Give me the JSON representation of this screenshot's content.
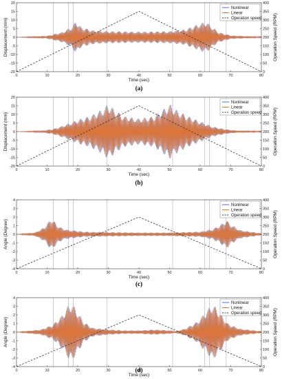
{
  "chart_data": [
    {
      "type": "line",
      "caption": "(a)",
      "xlabel": "Time (sec)",
      "ylabel": "Displacement (mm)",
      "y2label": "Operation Speed (RPM)",
      "xlim": [
        0,
        80
      ],
      "ylim": [
        -20,
        20
      ],
      "y2lim": [
        0,
        400
      ],
      "xticks": [
        0,
        10,
        20,
        30,
        40,
        50,
        60,
        70,
        80
      ],
      "yticks": [
        -20,
        -15,
        -10,
        -5,
        0,
        5,
        10,
        15,
        20
      ],
      "y2ticks": [
        0,
        50,
        100,
        150,
        200,
        250,
        300,
        350,
        400
      ],
      "vlines": [
        12,
        17,
        18.5,
        29.5,
        51,
        61.5,
        63,
        68.5
      ],
      "series": [
        {
          "name": "Nonlinear",
          "color": "#4a6cd4",
          "style": "solid",
          "envelope": [
            [
              0,
              0
            ],
            [
              10,
              0.8
            ],
            [
              15,
              3
            ],
            [
              18,
              6
            ],
            [
              19.5,
              9.5
            ],
            [
              21,
              6
            ],
            [
              25,
              4
            ],
            [
              30,
              3.5
            ],
            [
              40,
              3.2
            ],
            [
              50,
              3.5
            ],
            [
              55,
              4.5
            ],
            [
              60,
              8
            ],
            [
              62,
              9
            ],
            [
              64,
              6
            ],
            [
              66,
              3
            ],
            [
              70,
              1
            ],
            [
              80,
              0.3
            ]
          ]
        },
        {
          "name": "Linear",
          "color": "#e8742a",
          "style": "solid",
          "envelope": [
            [
              0,
              0
            ],
            [
              10,
              0.7
            ],
            [
              15,
              2.8
            ],
            [
              18,
              5.5
            ],
            [
              19.5,
              8.5
            ],
            [
              21,
              5.5
            ],
            [
              25,
              3.8
            ],
            [
              30,
              3.3
            ],
            [
              40,
              3.0
            ],
            [
              50,
              3.3
            ],
            [
              55,
              4.2
            ],
            [
              60,
              7.5
            ],
            [
              62,
              8.5
            ],
            [
              64,
              5.5
            ],
            [
              66,
              2.8
            ],
            [
              70,
              0.9
            ],
            [
              80,
              0.3
            ]
          ]
        },
        {
          "name": "Operation speed",
          "color": "#333333",
          "style": "dashed",
          "points": [
            [
              0,
              0
            ],
            [
              40,
              350
            ],
            [
              80,
              0
            ]
          ]
        }
      ]
    },
    {
      "type": "line",
      "caption": "(b)",
      "xlabel": "Time (sec)",
      "ylabel": "Displacement (mm)",
      "y2label": "Operation Speed (RPM)",
      "xlim": [
        0,
        80
      ],
      "ylim": [
        -20,
        20
      ],
      "y2lim": [
        0,
        400
      ],
      "xticks": [
        0,
        10,
        20,
        30,
        40,
        50,
        60,
        70,
        80
      ],
      "yticks": [
        -20,
        -15,
        -10,
        -5,
        0,
        5,
        10,
        15,
        20
      ],
      "y2ticks": [
        0,
        50,
        100,
        150,
        200,
        250,
        300,
        350,
        400
      ],
      "vlines": [
        12,
        17,
        18.5,
        29.5,
        51,
        61.5,
        63,
        68.5
      ],
      "series": [
        {
          "name": "Nonlinear",
          "color": "#4a6cd4",
          "style": "solid",
          "envelope": [
            [
              0,
              0
            ],
            [
              8,
              0.5
            ],
            [
              12,
              1.5
            ],
            [
              16,
              4
            ],
            [
              20,
              7
            ],
            [
              24,
              9
            ],
            [
              28,
              13
            ],
            [
              30,
              16
            ],
            [
              32,
              13
            ],
            [
              35,
              9
            ],
            [
              40,
              7.5
            ],
            [
              45,
              9
            ],
            [
              48,
              13
            ],
            [
              50,
              16
            ],
            [
              52,
              13
            ],
            [
              56,
              9
            ],
            [
              60,
              6
            ],
            [
              64,
              3
            ],
            [
              68,
              1.5
            ],
            [
              72,
              0.6
            ],
            [
              80,
              0.3
            ]
          ]
        },
        {
          "name": "Linear",
          "color": "#e8742a",
          "style": "solid",
          "envelope": [
            [
              0,
              0
            ],
            [
              8,
              0.5
            ],
            [
              12,
              1.4
            ],
            [
              16,
              3.8
            ],
            [
              20,
              6.5
            ],
            [
              24,
              8.5
            ],
            [
              28,
              12
            ],
            [
              30,
              15
            ],
            [
              32,
              12
            ],
            [
              35,
              8.5
            ],
            [
              40,
              7
            ],
            [
              45,
              8.5
            ],
            [
              48,
              12
            ],
            [
              50,
              15
            ],
            [
              52,
              12
            ],
            [
              56,
              8.5
            ],
            [
              60,
              5.5
            ],
            [
              64,
              2.8
            ],
            [
              68,
              1.3
            ],
            [
              72,
              0.5
            ],
            [
              80,
              0.3
            ]
          ]
        },
        {
          "name": "Operation speed",
          "color": "#333333",
          "style": "dashed",
          "points": [
            [
              0,
              0
            ],
            [
              40,
              350
            ],
            [
              80,
              0
            ]
          ]
        }
      ]
    },
    {
      "type": "line",
      "caption": "(c)",
      "xlabel": "Time (sec)",
      "ylabel": "Angle (Degree)",
      "y2label": "Operation Speed (RPM)",
      "xlim": [
        0,
        80
      ],
      "ylim": [
        -4,
        4
      ],
      "y2lim": [
        0,
        400
      ],
      "xticks": [
        0,
        10,
        20,
        30,
        40,
        50,
        60,
        70,
        80
      ],
      "yticks": [
        -4,
        -3,
        -2,
        -1,
        0,
        1,
        2,
        3,
        4
      ],
      "y2ticks": [
        0,
        50,
        100,
        150,
        200,
        250,
        300,
        350,
        400
      ],
      "vlines": [
        12,
        17,
        18.5,
        29.5,
        51,
        61.5,
        63,
        68.5
      ],
      "series": [
        {
          "name": "Nonlinear",
          "color": "#4a6cd4",
          "style": "solid",
          "envelope": [
            [
              0,
              0
            ],
            [
              6,
              0.2
            ],
            [
              9,
              0.8
            ],
            [
              11.5,
              1.9
            ],
            [
              13,
              1.2
            ],
            [
              15,
              0.7
            ],
            [
              17,
              0.5
            ],
            [
              19,
              0.45
            ],
            [
              22,
              0.3
            ],
            [
              30,
              0.25
            ],
            [
              40,
              0.2
            ],
            [
              50,
              0.2
            ],
            [
              60,
              0.3
            ],
            [
              64,
              0.6
            ],
            [
              67,
              1.2
            ],
            [
              68.5,
              1.7
            ],
            [
              70,
              1.2
            ],
            [
              73,
              0.5
            ],
            [
              80,
              0.1
            ]
          ]
        },
        {
          "name": "Linear",
          "color": "#e8742a",
          "style": "solid",
          "envelope": [
            [
              0,
              0
            ],
            [
              6,
              0.2
            ],
            [
              9,
              0.75
            ],
            [
              11.5,
              1.8
            ],
            [
              13,
              1.1
            ],
            [
              15,
              0.65
            ],
            [
              17,
              0.45
            ],
            [
              19,
              0.4
            ],
            [
              22,
              0.25
            ],
            [
              30,
              0.22
            ],
            [
              40,
              0.18
            ],
            [
              50,
              0.18
            ],
            [
              60,
              0.28
            ],
            [
              64,
              0.55
            ],
            [
              67,
              1.1
            ],
            [
              68.5,
              1.6
            ],
            [
              70,
              1.1
            ],
            [
              73,
              0.45
            ],
            [
              80,
              0.1
            ]
          ]
        },
        {
          "name": "Operation speed",
          "color": "#333333",
          "style": "dashed",
          "points": [
            [
              0,
              0
            ],
            [
              40,
              300
            ],
            [
              80,
              0
            ]
          ]
        }
      ]
    },
    {
      "type": "line",
      "caption": "(d)",
      "xlabel": "Time (sec)",
      "ylabel": "Angle (Degree)",
      "y2label": "Operation Speed (RPM)",
      "xlim": [
        0,
        80
      ],
      "ylim": [
        -4,
        4
      ],
      "y2lim": [
        0,
        400
      ],
      "xticks": [
        0,
        10,
        20,
        30,
        40,
        50,
        60,
        70,
        80
      ],
      "yticks": [
        -4,
        -3,
        -2,
        -1,
        0,
        1,
        2,
        3,
        4
      ],
      "y2ticks": [
        0,
        50,
        100,
        150,
        200,
        250,
        300,
        350,
        400
      ],
      "vlines": [
        12,
        17,
        18.5,
        29.5,
        51,
        61.5,
        63,
        68.5
      ],
      "series": [
        {
          "name": "Nonlinear",
          "color": "#4a6cd4",
          "style": "solid",
          "envelope": [
            [
              0,
              0
            ],
            [
              8,
              0.3
            ],
            [
              12,
              0.9
            ],
            [
              15,
              2
            ],
            [
              17,
              3.1
            ],
            [
              18,
              3.4
            ],
            [
              19.5,
              2.6
            ],
            [
              22,
              1.2
            ],
            [
              25,
              0.5
            ],
            [
              30,
              0.3
            ],
            [
              35,
              0.2
            ],
            [
              40,
              0.2
            ],
            [
              45,
              0.3
            ],
            [
              50,
              0.2
            ],
            [
              52,
              0.1
            ],
            [
              55,
              0.4
            ],
            [
              59,
              1.2
            ],
            [
              62,
              2.4
            ],
            [
              64,
              3.3
            ],
            [
              66,
              2.5
            ],
            [
              69,
              1.0
            ],
            [
              73,
              0.4
            ],
            [
              80,
              0.1
            ]
          ]
        },
        {
          "name": "Linear",
          "color": "#e8742a",
          "style": "solid",
          "envelope": [
            [
              0,
              0
            ],
            [
              8,
              0.3
            ],
            [
              12,
              0.85
            ],
            [
              15,
              1.9
            ],
            [
              17,
              3.0
            ],
            [
              18,
              3.3
            ],
            [
              19.5,
              2.5
            ],
            [
              22,
              1.1
            ],
            [
              25,
              0.45
            ],
            [
              30,
              0.28
            ],
            [
              35,
              0.18
            ],
            [
              40,
              0.18
            ],
            [
              45,
              0.28
            ],
            [
              50,
              0.18
            ],
            [
              52,
              0.1
            ],
            [
              55,
              0.38
            ],
            [
              59,
              1.15
            ],
            [
              62,
              2.3
            ],
            [
              64,
              3.2
            ],
            [
              66,
              2.4
            ],
            [
              69,
              0.95
            ],
            [
              73,
              0.38
            ],
            [
              80,
              0.1
            ]
          ]
        },
        {
          "name": "Operation speed",
          "color": "#333333",
          "style": "dashed",
          "points": [
            [
              0,
              0
            ],
            [
              40,
              300
            ],
            [
              80,
              0
            ]
          ]
        }
      ]
    }
  ]
}
